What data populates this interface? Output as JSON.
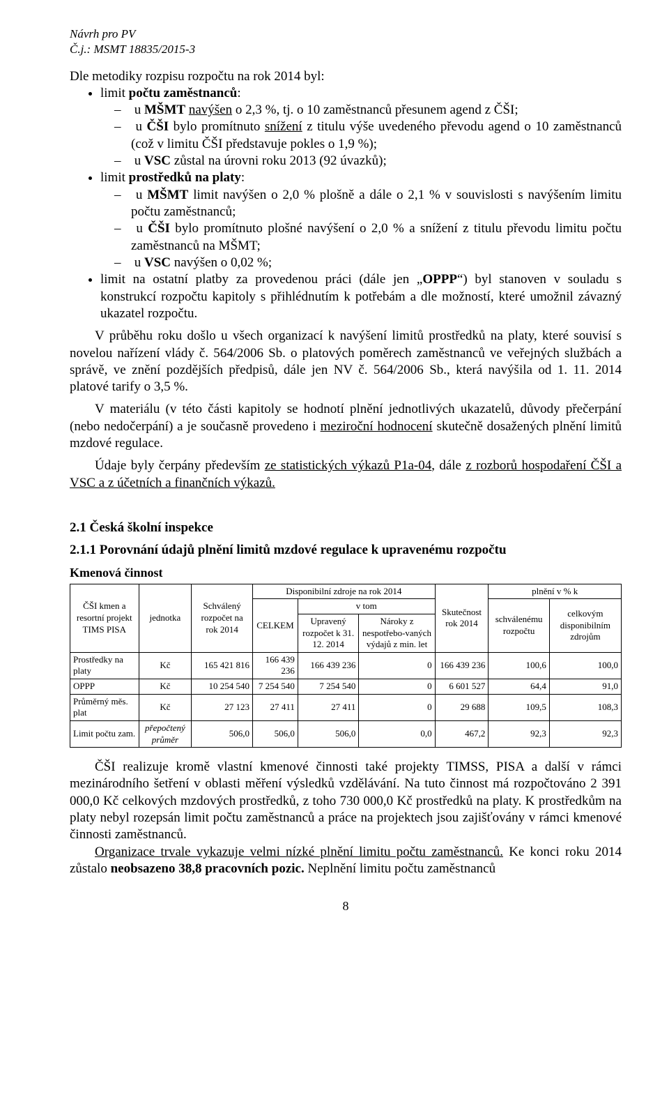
{
  "header": {
    "line1": "Návrh pro PV",
    "line2": "Č.j.: MSMT 18835/2015-3"
  },
  "intro": {
    "lead": "Dle metodiky rozpisu rozpočtu na rok 2014 byl:",
    "bullet1_a": "limit ",
    "bullet1_b": "počtu zaměstnanců",
    "bullet1_c": ":",
    "sub1_a": "u ",
    "sub1_b": "MŠMT",
    "sub1_c": " ",
    "sub1_d": "navýšen",
    "sub1_e": " o 2,3 %, tj. o 10 zaměstnanců přesunem agend z ČŠI;",
    "sub2_a": "u ",
    "sub2_b": "ČŠI",
    "sub2_c": " bylo promítnuto ",
    "sub2_d": "snížení",
    "sub2_e": " z titulu výše uvedeného převodu agend o 10 zaměstnanců (což v limitu ČŠI představuje pokles o 1,9 %);",
    "sub3_a": "u ",
    "sub3_b": "VSC",
    "sub3_c": " zůstal na úrovni roku 2013 (92 úvazků);",
    "bullet2_a": "limit ",
    "bullet2_b": "prostředků na platy",
    "bullet2_c": ":",
    "sub4_a": "u ",
    "sub4_b": "MŠMT",
    "sub4_c": " limit navýšen o 2,0 % plošně a dále o 2,1 % v souvislosti s navýšením limitu počtu zaměstnanců;",
    "sub5_a": "u ",
    "sub5_b": "ČŠI",
    "sub5_c": " bylo promítnuto plošné navýšení o 2,0 % a snížení z titulu převodu limitu počtu zaměstnanců na MŠMT;",
    "sub6_a": "u ",
    "sub6_b": "VSC",
    "sub6_c": " navýšen o 0,02 %;",
    "bullet3_a": "limit na ostatní platby za provedenou práci (dále jen „",
    "bullet3_b": "OPPP",
    "bullet3_c": "“) byl stanoven v souladu s konstrukcí rozpočtu kapitoly s přihlédnutím k potřebám a dle možností, které umožnil závazný ukazatel rozpočtu."
  },
  "para1": "V průběhu roku došlo u všech organizací k navýšení limitů prostředků na platy, které souvisí s novelou nařízení vlády č. 564/2006 Sb. o platových poměrech zaměstnanců ve veřejných službách a správě, ve znění pozdějších předpisů, dále jen NV č. 564/2006 Sb., která navýšila od 1. 11. 2014 platové tarify o 3,5 %.",
  "para2_a": "V materiálu (v této části kapitoly se hodnotí plnění jednotlivých ukazatelů, důvody přečerpání (nebo nedočerpání) a je současně provedeno i ",
  "para2_b": "meziroční hodnocení",
  "para2_c": " skutečně dosažených plnění limitů mzdové regulace.",
  "para3_a": "Údaje byly čerpány především ",
  "para3_b": "ze statistických výkazů P1a-04",
  "para3_c": ", dále ",
  "para3_d": "z rozborů hospodaření ČŠI a VSC a z účetních a finančních výkazů.",
  "section21": "2.1 Česká školní inspekce",
  "section211": "2.1.1 Porovnání údajů plnění limitů mzdové regulace k upravenému rozpočtu",
  "table_title": "Kmenová činnost",
  "table": {
    "col_headers": {
      "c1": "ČŠI kmen a resortní projekt TIMS PISA",
      "c2": "jednotka",
      "c3": "Schválený rozpočet na rok 2014",
      "disp": "Disponibilní zdroje na rok 2014",
      "celkem": "CELKEM",
      "vtom": "v tom",
      "upr": "Upravený rozpočet k 31. 12. 2014",
      "naroky": "Nároky z nespotřebo-vaných výdajů z min. let",
      "skut": "Skutečnost rok 2014",
      "plneni": "plnění v % k",
      "schv": "schválenému rozpočtu",
      "celk": "celkovým disponibilním zdrojům"
    },
    "rows": [
      {
        "label": "Prostředky na platy",
        "unit": "Kč",
        "c1": "165 421 816",
        "c2": "166 439 236",
        "c3": "166 439 236",
        "c4": "0",
        "c5": "166 439 236",
        "c6": "100,6",
        "c7": "100,0"
      },
      {
        "label": "OPPP",
        "unit": "Kč",
        "c1": "10 254 540",
        "c2": "7 254 540",
        "c3": "7 254 540",
        "c4": "0",
        "c5": "6 601 527",
        "c6": "64,4",
        "c7": "91,0"
      },
      {
        "label": "Průměrný měs. plat",
        "unit": "Kč",
        "c1": "27 123",
        "c2": "27 411",
        "c3": "27 411",
        "c4": "0",
        "c5": "29 688",
        "c6": "109,5",
        "c7": "108,3"
      },
      {
        "label": "Limit počtu zam.",
        "unit": "přepočtený průměr",
        "c1": "506,0",
        "c2": "506,0",
        "c3": "506,0",
        "c4": "0,0",
        "c5": "467,2",
        "c6": "92,3",
        "c7": "92,3"
      }
    ]
  },
  "para4": "ČŠI realizuje kromě vlastní kmenové činnosti také projekty TIMSS, PISA a další v rámci mezinárodního šetření v oblasti měření výsledků vzdělávání. Na tuto činnost má rozpočtováno 2 391 000,0 Kč celkových mzdových prostředků, z toho 730 000,0 Kč prostředků na platy. K prostředkům na platy nebyl rozepsán limit počtu zaměstnanců a práce na projektech jsou zajišťovány v rámci kmenové činnosti zaměstnanců.",
  "para5_a": "Organizace trvale vykazuje velmi nízké plnění limitu počtu zaměstnanců.",
  "para5_b": " Ke konci roku 2014 zůstalo ",
  "para5_c": "neobsazeno 38,8 pracovních pozic.",
  "para5_d": " Neplnění limitu počtu zaměstnanců",
  "page_number": "8"
}
